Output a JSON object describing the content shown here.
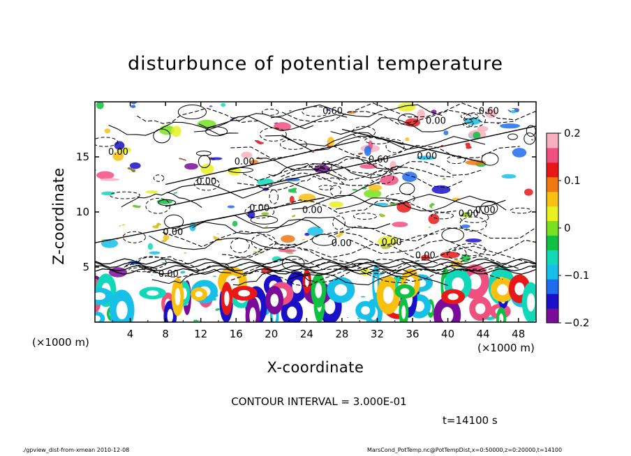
{
  "labels": {
    "title": "disturbunce of potential temperature",
    "xlabel": "X-coordinate",
    "ylabel": "Z-coordinate",
    "x_unit_left": "(×1000 m)",
    "x_unit_right": "(×1000 m)",
    "contour_interval": "CONTOUR INTERVAL = 3.000E-01",
    "time": "t=14100 s",
    "footer_left": "./gpview_dist-from-xmean  2010-12-08",
    "footer_right": "MarsCond_PotTemp.nc@PotTempDist,x=0:50000,z=0:20000,t=14100"
  },
  "chart_data": {
    "type": "heatmap",
    "title": "disturbunce of potential temperature",
    "xlabel": "X-coordinate",
    "ylabel": "Z-coordinate",
    "xlim": [
      0,
      50
    ],
    "ylim": [
      0,
      20
    ],
    "x_ticks": [
      4,
      8,
      12,
      16,
      20,
      24,
      28,
      32,
      36,
      40,
      44,
      48
    ],
    "y_ticks": [
      5,
      10,
      15
    ],
    "color_scale": {
      "min": -0.2,
      "max": 0.2,
      "tick_labels": [
        "0.2",
        "0.1",
        "0",
        "−0.1",
        "−0.2"
      ],
      "tick_values": [
        0.2,
        0.1,
        0,
        -0.1,
        -0.2
      ],
      "colors": [
        "#7a0c9a",
        "#1a10c8",
        "#1e6cf0",
        "#17c0e8",
        "#10d8b8",
        "#10c040",
        "#78e020",
        "#e8f020",
        "#f8c010",
        "#f07810",
        "#e81818",
        "#f05080",
        "#f8b0c0"
      ]
    },
    "contour_interval": 0.3,
    "contour_labels": [
      "0.00",
      "0.60",
      "0.60",
      "0.00",
      "0.00",
      "0.60",
      "0.00",
      "0.00",
      "0.00",
      "0.00",
      "0.00",
      "0.00",
      "0.00",
      "0.00",
      "0.00",
      "0.00",
      "0.00"
    ]
  }
}
